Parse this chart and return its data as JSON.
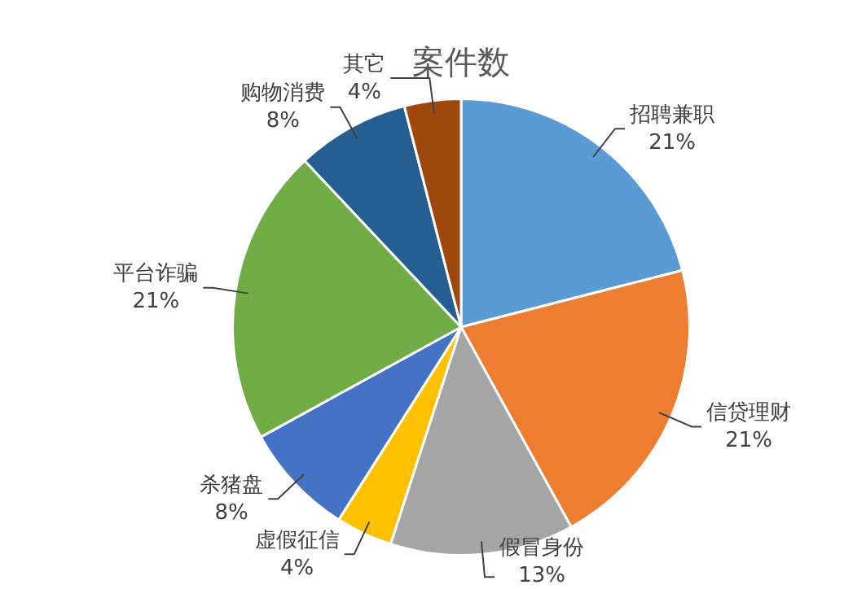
{
  "chart_data": {
    "type": "pie",
    "title": "案件数",
    "categories": [
      "招聘兼职",
      "信贷理财",
      "假冒身份",
      "虚假征信",
      "杀猪盘",
      "平台诈骗",
      "购物消费",
      "其它"
    ],
    "values": [
      21,
      21,
      13,
      4,
      8,
      21,
      8,
      4
    ],
    "colors": [
      "#5b9bd5",
      "#ed7d31",
      "#a5a5a5",
      "#ffc000",
      "#4472c4",
      "#70ad47",
      "#255e91",
      "#9e480e"
    ],
    "value_labels": [
      "21%",
      "21%",
      "13%",
      "4%",
      "8%",
      "21%",
      "8%",
      "4%"
    ],
    "legend": false
  }
}
